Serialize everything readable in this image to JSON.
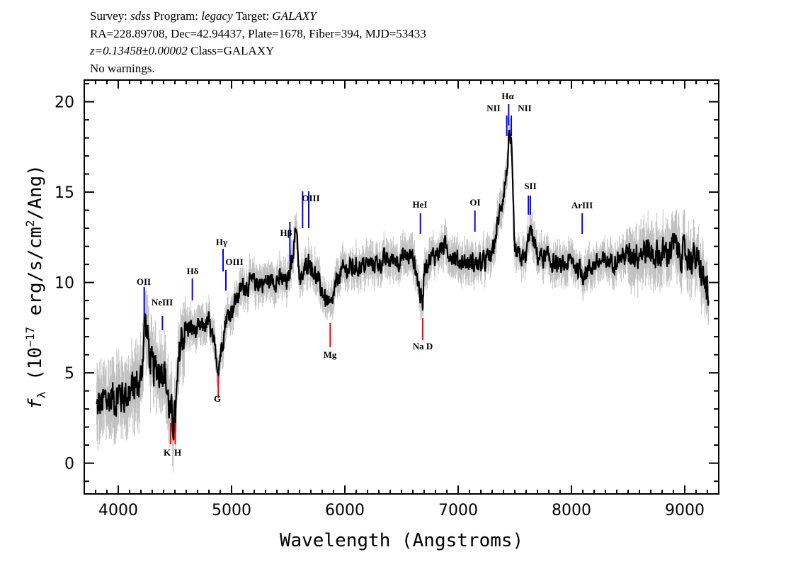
{
  "header": {
    "line1": {
      "survey_label": "Survey: ",
      "survey": "sdss",
      "program_label": " Program: ",
      "program": "legacy",
      "target_label": " Target: ",
      "target": "GALAXY"
    },
    "line2": "RA=228.89708, Dec=42.94437, Plate=1678, Fiber=394, MJD=53433",
    "line3": {
      "redshift": "z=0.13458±0.00002",
      "class": " Class=GALAXY"
    },
    "line4": "No warnings."
  },
  "chart_data": {
    "type": "line",
    "title": "",
    "xlabel": "Wavelength (Angstroms)",
    "ylabel": "f_λ (10^-17 erg/s/cm^2/Ang)",
    "ylabel_parts": {
      "f": "f",
      "sub": "λ",
      "pre": " (10",
      "exp": "−17",
      "mid": " erg/s/cm",
      "exp2": "2",
      "post": "/Ang)"
    },
    "xlim": [
      3700,
      9300
    ],
    "ylim": [
      -1.7,
      21.2
    ],
    "xticks": [
      4000,
      5000,
      6000,
      7000,
      8000,
      9000
    ],
    "yticks": [
      0,
      5,
      10,
      15,
      20
    ],
    "grid": false,
    "series": [
      {
        "role": "flux",
        "color": "#000000",
        "x": [
          3810,
          3900,
          4000,
          4100,
          4200,
          4235,
          4300,
          4400,
          4462,
          4503,
          4550,
          4600,
          4700,
          4800,
          4883,
          4950,
          5000,
          5100,
          5200,
          5300,
          5400,
          5500,
          5575,
          5600,
          5681,
          5800,
          5871,
          5950,
          6000,
          6200,
          6400,
          6600,
          6687,
          6700,
          6875,
          7000,
          7200,
          7300,
          7429,
          7446,
          7469,
          7500,
          7600,
          7630,
          7700,
          7800,
          7900,
          8000,
          8100,
          8200,
          8400,
          8600,
          8800,
          8900,
          9000,
          9100,
          9200,
          9210
        ],
        "y": [
          3.0,
          3.5,
          3.8,
          3.9,
          4.5,
          8.0,
          5.0,
          5.5,
          2.5,
          2.3,
          6.8,
          7.5,
          7.3,
          7.8,
          5.3,
          8.0,
          8.5,
          9.8,
          10.0,
          10.0,
          10.2,
          10.0,
          13.2,
          9.8,
          11.3,
          9.5,
          8.5,
          10.5,
          10.7,
          11.0,
          11.2,
          11.5,
          8.7,
          11.0,
          12.0,
          11.2,
          11.0,
          11.5,
          16.0,
          17.8,
          17.5,
          11.5,
          11.3,
          13.0,
          11.5,
          11.3,
          10.8,
          11.2,
          10.5,
          11.0,
          11.3,
          11.8,
          11.5,
          12.0,
          11.5,
          11.3,
          9.5,
          8.3
        ]
      },
      {
        "role": "error-band",
        "color": "#c0c0c0"
      }
    ],
    "lines": [
      {
        "label": "OII",
        "wavelength": 4229,
        "type": "emission",
        "color": "#0000ff"
      },
      {
        "label": "NeIII",
        "wavelength": 4390,
        "type": "emission",
        "color": "#0000ff"
      },
      {
        "label": "Hδ",
        "wavelength": 4654,
        "type": "emission",
        "color": "#0000ff"
      },
      {
        "label": "Hγ",
        "wavelength": 4925,
        "type": "emission",
        "color": "#0000ff"
      },
      {
        "label": "OIII",
        "wavelength": 4950,
        "type": "emission",
        "color": "#0000ff"
      },
      {
        "label": "Hβ",
        "wavelength": 5515,
        "type": "emission",
        "color": "#0000ff"
      },
      {
        "label": "OIII",
        "wavelength": 5627,
        "type": "emission",
        "color": "#0000ff",
        "pair": 5681
      },
      {
        "label": "HeI",
        "wavelength": 6667,
        "type": "emission",
        "color": "#0000ff"
      },
      {
        "label": "OI",
        "wavelength": 7148,
        "type": "emission",
        "color": "#0000ff"
      },
      {
        "label": "NII",
        "wavelength": 7429,
        "type": "emission",
        "color": "#0000ff"
      },
      {
        "label": "Hα",
        "wavelength": 7446,
        "type": "emission",
        "color": "#0000ff"
      },
      {
        "label": "NII",
        "wavelength": 7469,
        "type": "emission",
        "color": "#0000ff"
      },
      {
        "label": "SII",
        "wavelength": 7620,
        "type": "emission",
        "color": "#0000ff",
        "pair": 7637
      },
      {
        "label": "ArIII",
        "wavelength": 8095,
        "type": "emission",
        "color": "#0000ff"
      },
      {
        "label": "K",
        "wavelength": 4463,
        "type": "absorption",
        "color": "#ff0000"
      },
      {
        "label": "H",
        "wavelength": 4503,
        "type": "absorption",
        "color": "#ff0000"
      },
      {
        "label": "G",
        "wavelength": 4883,
        "type": "absorption",
        "color": "#ff0000"
      },
      {
        "label": "Mg",
        "wavelength": 5871,
        "type": "absorption",
        "color": "#ff0000"
      },
      {
        "label": "Na D",
        "wavelength": 6687,
        "type": "absorption",
        "color": "#ff0000"
      }
    ]
  }
}
